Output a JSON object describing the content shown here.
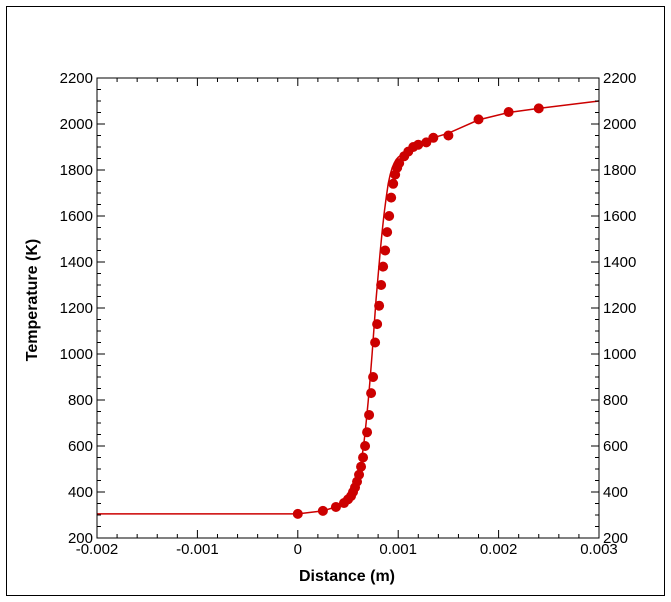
{
  "chart_data": {
    "type": "line",
    "title": "",
    "xlabel": "Distance (m)",
    "ylabel": "Temperature (K)",
    "xlim": [
      -0.002,
      0.003
    ],
    "ylim": [
      200,
      2200
    ],
    "x_ticks": [
      -0.002,
      -0.001,
      0,
      0.001,
      0.002,
      0.003
    ],
    "x_tick_labels": [
      "-0.002",
      "-0.001",
      "0",
      "0.001",
      "0.002",
      "0.003"
    ],
    "y_ticks": [
      200,
      400,
      600,
      800,
      1000,
      1200,
      1400,
      1600,
      1800,
      2000,
      2200
    ],
    "y_tick_labels": [
      "200",
      "400",
      "600",
      "800",
      "1000",
      "1200",
      "1400",
      "1600",
      "1800",
      "2000",
      "2200"
    ],
    "y_axis_right_labels": true,
    "grid": false,
    "series": [
      {
        "type": "line",
        "color": "#cc0000",
        "x": [
          -0.002,
          0.0,
          0.00025,
          0.00038,
          0.00046,
          0.0005,
          0.00054,
          0.00057,
          0.0006,
          0.00062,
          0.00064,
          0.00066,
          0.00068,
          0.0007,
          0.00072,
          0.00074,
          0.00076,
          0.00078,
          0.0008,
          0.00082,
          0.00084,
          0.00086,
          0.00088,
          0.0009,
          0.00092,
          0.00094,
          0.00096,
          0.00098,
          0.001,
          0.00104,
          0.0011,
          0.00118,
          0.00126,
          0.00135,
          0.0015,
          0.0018,
          0.0021,
          0.0024,
          0.003
        ],
        "y": [
          305,
          305,
          318,
          335,
          352,
          368,
          390,
          418,
          455,
          500,
          555,
          620,
          700,
          790,
          890,
          1000,
          1120,
          1240,
          1340,
          1440,
          1530,
          1610,
          1680,
          1740,
          1780,
          1810,
          1830,
          1845,
          1855,
          1870,
          1890,
          1910,
          1925,
          1940,
          1960,
          2018,
          2050,
          2068,
          2100
        ]
      },
      {
        "type": "scatter",
        "color": "#cc0000",
        "marker": "circle",
        "x": [
          0.0,
          0.00025,
          0.00038,
          0.00046,
          0.0005,
          0.00053,
          0.00055,
          0.00057,
          0.00059,
          0.00061,
          0.00063,
          0.00065,
          0.00067,
          0.00069,
          0.00071,
          0.00073,
          0.00075,
          0.00077,
          0.00079,
          0.00081,
          0.00083,
          0.00085,
          0.00087,
          0.00089,
          0.00091,
          0.00093,
          0.00095,
          0.00097,
          0.00099,
          0.00101,
          0.00106,
          0.0011,
          0.00115,
          0.0012,
          0.00128,
          0.00135,
          0.0015,
          0.0018,
          0.0021,
          0.0024
        ],
        "y": [
          305,
          318,
          335,
          352,
          368,
          382,
          400,
          420,
          445,
          475,
          510,
          550,
          600,
          660,
          735,
          830,
          900,
          1050,
          1130,
          1210,
          1300,
          1380,
          1450,
          1530,
          1600,
          1680,
          1740,
          1780,
          1810,
          1830,
          1860,
          1880,
          1900,
          1910,
          1920,
          1940,
          1950,
          2020,
          2052,
          2068
        ]
      }
    ]
  }
}
